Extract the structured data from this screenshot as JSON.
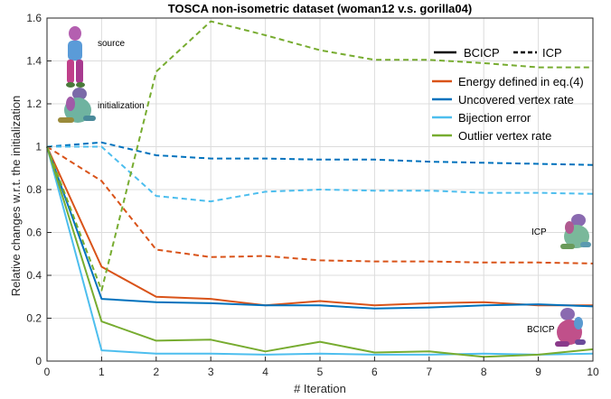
{
  "chart_data": {
    "type": "line",
    "title": "TOSCA non-isometric dataset (woman12 v.s. gorilla04)",
    "xlabel": "# Iteration",
    "ylabel": "Relative changes w.r.t. the initialization",
    "xlim": [
      0,
      10
    ],
    "ylim": [
      0,
      1.6
    ],
    "xticks": [
      0,
      1,
      2,
      3,
      4,
      5,
      6,
      7,
      8,
      9,
      10
    ],
    "yticks": [
      0,
      0.2,
      0.4,
      0.6,
      0.8,
      1,
      1.2,
      1.4,
      1.6
    ],
    "ytick_labels": [
      "0",
      "0.2",
      "0.4",
      "0.6",
      "0.8",
      "1",
      "1.2",
      "1.4",
      "1.6"
    ],
    "grid": true,
    "legend_placement": "top-right",
    "style_legend": [
      {
        "label": "BCICP",
        "dash": "solid"
      },
      {
        "label": "ICP",
        "dash": "dashed"
      }
    ],
    "x": [
      0,
      1,
      2,
      3,
      4,
      5,
      6,
      7,
      8,
      9,
      10
    ],
    "series": [
      {
        "name": "Energy defined in eq.(4)",
        "method": "BCICP",
        "color": "#d95319",
        "values": [
          1.0,
          0.44,
          0.3,
          0.29,
          0.26,
          0.28,
          0.26,
          0.27,
          0.275,
          0.26,
          0.26
        ]
      },
      {
        "name": "Uncovered vertex rate",
        "method": "BCICP",
        "color": "#0072bd",
        "values": [
          1.0,
          0.29,
          0.275,
          0.27,
          0.26,
          0.26,
          0.245,
          0.25,
          0.26,
          0.265,
          0.255
        ]
      },
      {
        "name": "Bijection error",
        "method": "BCICP",
        "color": "#4dbeee",
        "values": [
          1.0,
          0.05,
          0.035,
          0.035,
          0.03,
          0.035,
          0.03,
          0.03,
          0.035,
          0.03,
          0.035
        ]
      },
      {
        "name": "Outlier vertex rate",
        "method": "BCICP",
        "color": "#77ac30",
        "values": [
          1.0,
          0.185,
          0.095,
          0.1,
          0.045,
          0.09,
          0.04,
          0.045,
          0.02,
          0.03,
          0.055
        ]
      },
      {
        "name": "Energy defined in eq.(4)",
        "method": "ICP",
        "color": "#d95319",
        "values": [
          1.0,
          0.84,
          0.52,
          0.485,
          0.49,
          0.47,
          0.465,
          0.465,
          0.46,
          0.46,
          0.455
        ]
      },
      {
        "name": "Uncovered vertex rate",
        "method": "ICP",
        "color": "#0072bd",
        "values": [
          1.0,
          1.02,
          0.96,
          0.945,
          0.945,
          0.94,
          0.94,
          0.93,
          0.925,
          0.92,
          0.915
        ]
      },
      {
        "name": "Bijection error",
        "method": "ICP",
        "color": "#4dbeee",
        "values": [
          1.0,
          1.0,
          0.77,
          0.745,
          0.79,
          0.8,
          0.795,
          0.795,
          0.785,
          0.785,
          0.78
        ]
      },
      {
        "name": "Outlier vertex rate",
        "method": "ICP",
        "color": "#77ac30",
        "values": [
          1.0,
          0.33,
          1.35,
          1.585,
          1.52,
          1.45,
          1.405,
          1.405,
          1.39,
          1.37,
          1.37
        ]
      }
    ],
    "legend_entries": [
      {
        "label": "Energy defined in eq.(4)",
        "color": "#d95319"
      },
      {
        "label": "Uncovered vertex rate",
        "color": "#0072bd"
      },
      {
        "label": "Bijection error",
        "color": "#4dbeee"
      },
      {
        "label": "Outlier vertex rate",
        "color": "#77ac30"
      }
    ],
    "annotations": [
      {
        "label": "source",
        "icon": "source-shape-thumbnail"
      },
      {
        "label": "initialization",
        "icon": "initialization-shape-thumbnail"
      },
      {
        "label": "ICP",
        "icon": "icp-result-shape-thumbnail"
      },
      {
        "label": "BCICP",
        "icon": "bcicp-result-shape-thumbnail"
      }
    ]
  }
}
